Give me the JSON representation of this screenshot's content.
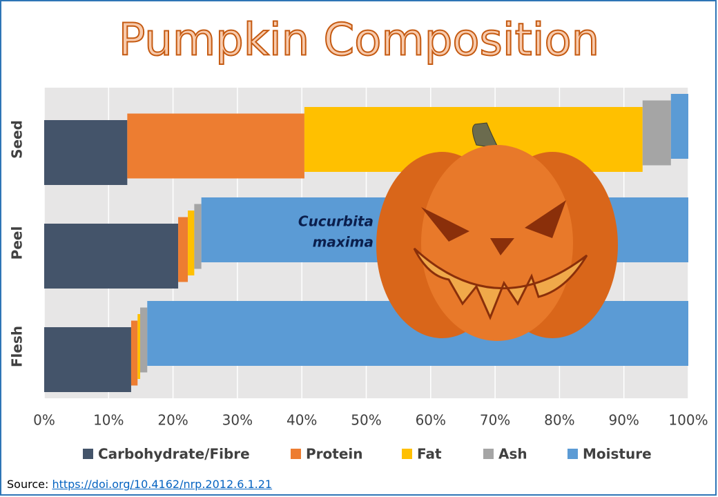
{
  "chart_data": {
    "type": "bar",
    "orientation": "horizontal",
    "stacked": true,
    "title": "Pumpkin Composition",
    "categories": [
      "Seed",
      "Peel",
      "Flesh"
    ],
    "series": [
      {
        "name": "Carbohydrate/Fibre",
        "color": "#44546a",
        "values": [
          12.9,
          20.8,
          13.5
        ]
      },
      {
        "name": "Protein",
        "color": "#ed7d31",
        "values": [
          27.5,
          1.5,
          1.0
        ]
      },
      {
        "name": "Fat",
        "color": "#ffc000",
        "values": [
          52.5,
          1.0,
          0.4
        ]
      },
      {
        "name": "Ash",
        "color": "#a5a5a5",
        "values": [
          4.4,
          1.1,
          1.1
        ]
      },
      {
        "name": "Moisture",
        "color": "#5b9bd5",
        "values": [
          2.7,
          75.6,
          84.0
        ]
      }
    ],
    "xlim": [
      0,
      100
    ],
    "xticks": [
      {
        "value": 0,
        "label": "0%"
      },
      {
        "value": 10,
        "label": "10%"
      },
      {
        "value": 20,
        "label": "20%"
      },
      {
        "value": 30,
        "label": "30%"
      },
      {
        "value": 40,
        "label": "40%"
      },
      {
        "value": 50,
        "label": "50%"
      },
      {
        "value": 60,
        "label": "60%"
      },
      {
        "value": 70,
        "label": "70%"
      },
      {
        "value": 80,
        "label": "80%"
      },
      {
        "value": 90,
        "label": "90%"
      },
      {
        "value": 100,
        "label": "100%"
      }
    ],
    "grid": true,
    "legend": "bottom",
    "annotation": [
      "Cucurbita",
      "maxima"
    ]
  },
  "source": {
    "label": "Source:",
    "url": "https://doi.org/10.4162/nrp.2012.6.1.21"
  }
}
